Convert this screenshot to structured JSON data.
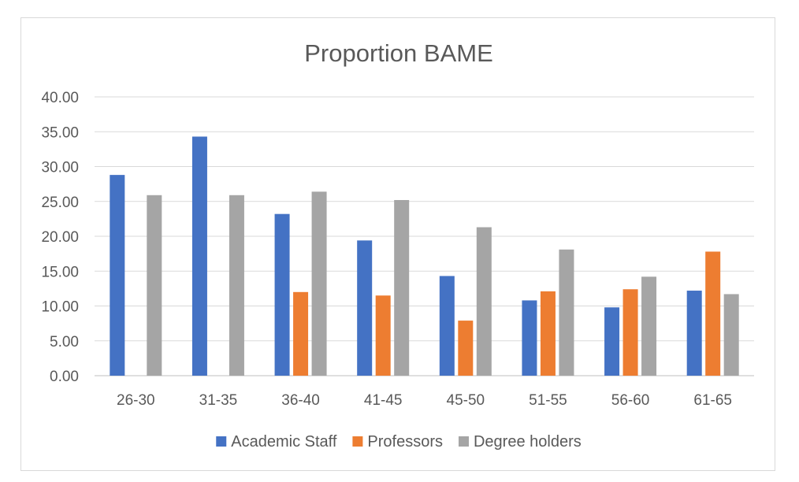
{
  "chart_data": {
    "type": "bar",
    "title": "Proportion BAME",
    "xlabel": "",
    "ylabel": "",
    "categories": [
      "26-30",
      "31-35",
      "36-40",
      "41-45",
      "45-50",
      "51-55",
      "56-60",
      "61-65"
    ],
    "ylim": [
      0,
      40
    ],
    "yticks": [
      "0.00",
      "5.00",
      "10.00",
      "15.00",
      "20.00",
      "25.00",
      "30.00",
      "35.00",
      "40.00"
    ],
    "grid": true,
    "legend_position": "bottom",
    "series": [
      {
        "name": "Academic Staff",
        "color": "#4472c4",
        "values": [
          28.8,
          34.3,
          23.2,
          19.4,
          14.3,
          10.8,
          9.8,
          12.2
        ]
      },
      {
        "name": "Professors",
        "color": "#ed7d31",
        "values": [
          null,
          null,
          12.0,
          11.5,
          7.9,
          12.1,
          12.4,
          17.8
        ]
      },
      {
        "name": "Degree holders",
        "color": "#a5a5a5",
        "values": [
          25.9,
          25.9,
          26.4,
          25.2,
          21.3,
          18.1,
          14.2,
          11.7
        ]
      }
    ]
  }
}
